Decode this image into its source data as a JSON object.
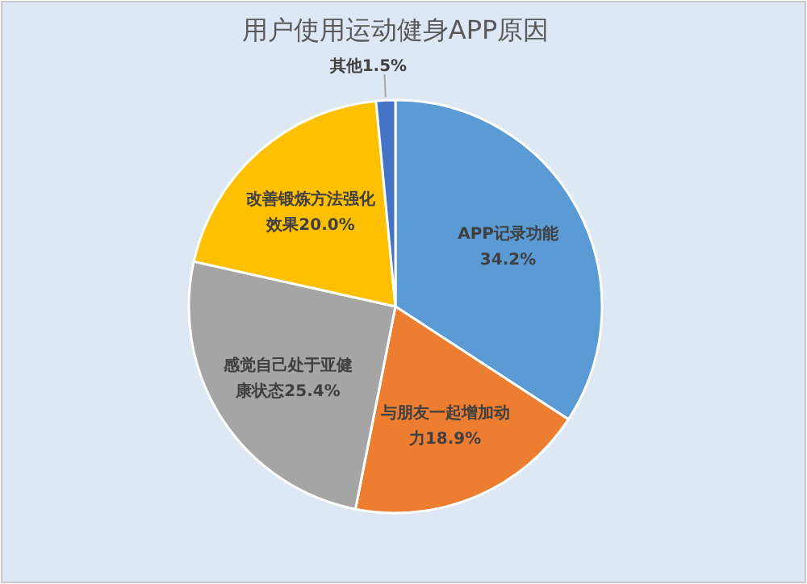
{
  "chart_data": {
    "type": "pie",
    "title": "用户使用运动健身APP原因",
    "categories": [
      "APP记录功能",
      "与朋友一起增加动力",
      "感觉自己处于亚健康状态",
      "改善锻炼方法强化效果",
      "其他"
    ],
    "values": [
      34.2,
      18.9,
      25.4,
      20.0,
      1.5
    ],
    "value_labels": [
      "34.2%",
      "18.9%",
      "25.4%",
      "20.0%",
      "1.5%"
    ],
    "colors": [
      "#5b9bd5",
      "#ed7d31",
      "#a5a5a5",
      "#ffc000",
      "#4472c4"
    ]
  }
}
